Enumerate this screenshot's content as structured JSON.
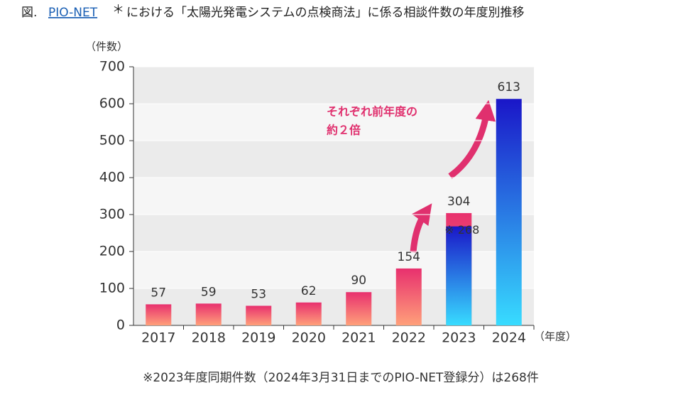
{
  "chart_data": {
    "type": "bar",
    "title_prefix": "図.",
    "title_link": "PIO-NET",
    "title_mark": "＊",
    "title_rest": "における「太陽光発電システムの点検商法」に係る相談件数の年度別推移",
    "y_label": "（件数）",
    "x_label": "（年度）",
    "categories": [
      "2017",
      "2018",
      "2019",
      "2020",
      "2021",
      "2022",
      "2023",
      "2024"
    ],
    "values": [
      57,
      59,
      53,
      62,
      90,
      154,
      304,
      613
    ],
    "colors": [
      "pink",
      "pink",
      "pink",
      "pink",
      "pink",
      "pink",
      "pink",
      "blue"
    ],
    "overlay": {
      "category": "2023",
      "value": 268,
      "value_label": "※ 268",
      "color": "blue"
    },
    "annotation": [
      "それぞれ前年度の",
      "約２倍"
    ],
    "footnote": "※2023年度同期件数（2024年3月31日までのPIO-NET登録分）は268件",
    "ylim": [
      0,
      700
    ],
    "yticks": [
      0,
      100,
      200,
      300,
      400,
      500,
      600,
      700
    ],
    "grid": true
  }
}
